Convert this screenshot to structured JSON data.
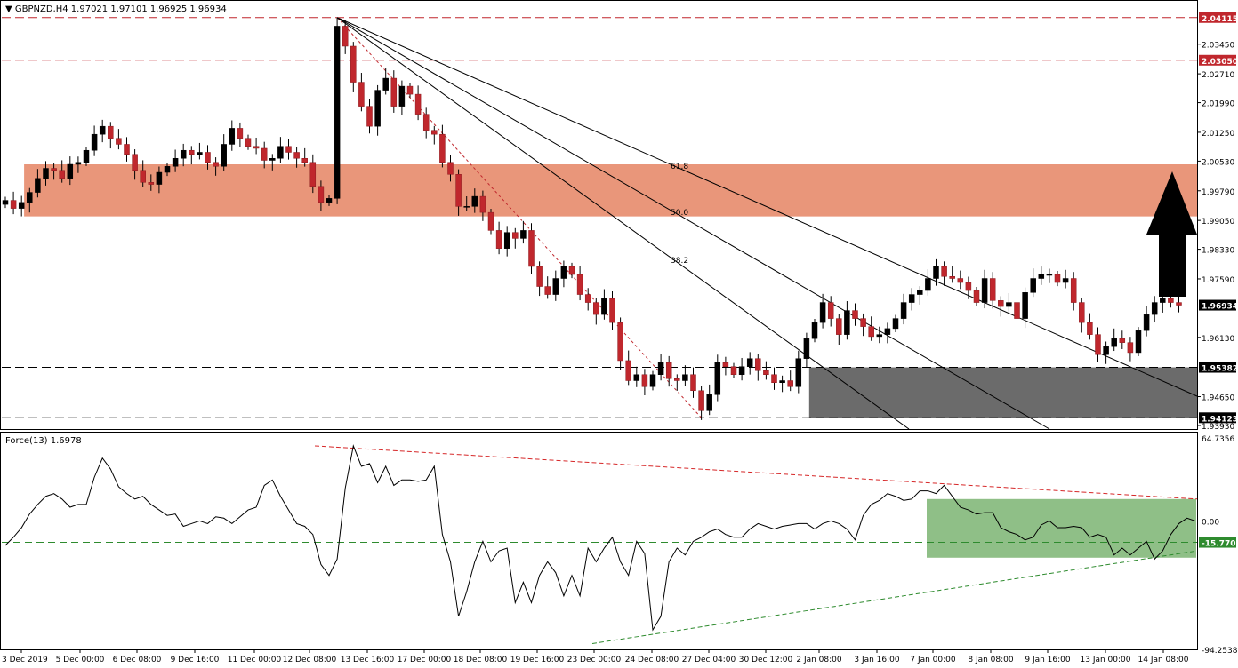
{
  "chart_data": [
    {
      "type": "candlestick",
      "title": "GBPNZD,H4",
      "ohlc_header": "1.97021 1.97101 1.96925 1.96934",
      "ylim": [
        1.9393,
        2.0442
      ],
      "price_ticks": [
        "2.03450",
        "2.02710",
        "2.01990",
        "2.01250",
        "2.00530",
        "1.99790",
        "1.99050",
        "1.98330",
        "1.97590",
        "1.96130",
        "1.94650",
        "1.93930"
      ],
      "level_labels": [
        {
          "value": 2.04115,
          "text": "2.04115",
          "color": "#c0272d"
        },
        {
          "value": 2.0305,
          "text": "2.03050",
          "color": "#c0272d"
        },
        {
          "value": 1.96934,
          "text": "1.96934",
          "color": "#000000"
        },
        {
          "value": 1.95382,
          "text": "1.95382",
          "color": "#000000"
        },
        {
          "value": 1.94123,
          "text": "1.94123",
          "color": "#000000"
        }
      ],
      "horizontal_levels": [
        {
          "value": 2.04115,
          "color": "#c0272d",
          "style": "dashed"
        },
        {
          "value": 2.0305,
          "color": "#c0272d",
          "style": "dashed"
        },
        {
          "value": 1.95382,
          "color": "#000000",
          "style": "dashed"
        },
        {
          "value": 1.94123,
          "color": "#000000",
          "style": "dashed"
        }
      ],
      "zones": [
        {
          "name": "resistance",
          "from_bar": 1,
          "to_bar": "end",
          "low": 1.9915,
          "high": 2.0045,
          "color": "#e9967a"
        },
        {
          "name": "support",
          "from_bar": 98,
          "to_bar": "end",
          "low": 1.94123,
          "high": 1.95382,
          "color": "#6b6b6b"
        }
      ],
      "fib_fan_labels": [
        "61.8",
        "50.0",
        "38.2"
      ],
      "x_tick_labels": [
        "3 Dec 2019",
        "5 Dec 00:00",
        "6 Dec 08:00",
        "9 Dec 16:00",
        "11 Dec 00:00",
        "12 Dec 08:00",
        "13 Dec 16:00",
        "17 Dec 00:00",
        "18 Dec 08:00",
        "19 Dec 16:00",
        "23 Dec 00:00",
        "24 Dec 08:00",
        "27 Dec 04:00",
        "30 Dec 12:00",
        "2 Jan 08:00",
        "3 Jan 16:00",
        "7 Jan 00:00",
        "8 Jan 08:00",
        "9 Jan 16:00",
        "13 Jan 00:00",
        "14 Jan 08:00"
      ],
      "closes": [
        1.9955,
        1.9935,
        1.995,
        1.9975,
        2.001,
        2.0035,
        2.003,
        2.001,
        2.0045,
        2.005,
        2.008,
        2.012,
        2.014,
        2.011,
        2.0095,
        2.007,
        2.003,
        2.0,
        1.9995,
        2.0025,
        2.004,
        2.006,
        2.008,
        2.007,
        2.0075,
        2.005,
        2.004,
        2.0095,
        2.0135,
        2.011,
        2.009,
        2.0085,
        2.0055,
        2.006,
        2.009,
        2.0075,
        2.006,
        2.005,
        1.999,
        1.995,
        1.996,
        2.039,
        2.034,
        2.025,
        2.019,
        2.014,
        2.023,
        2.026,
        2.019,
        2.024,
        2.022,
        2.017,
        2.013,
        2.012,
        2.005,
        2.002,
        1.994,
        1.994,
        1.9965,
        1.9925,
        1.988,
        1.9835,
        1.9875,
        1.986,
        1.988,
        1.979,
        1.974,
        1.972,
        1.976,
        1.979,
        1.977,
        1.972,
        1.97,
        1.967,
        1.971,
        1.965,
        1.9555,
        1.9505,
        1.952,
        1.949,
        1.952,
        1.955,
        1.951,
        1.9505,
        1.952,
        1.948,
        1.943,
        1.947,
        1.955,
        1.954,
        1.952,
        1.954,
        1.956,
        1.953,
        1.952,
        1.95,
        1.9505,
        1.949,
        1.956,
        1.961,
        1.965,
        1.97,
        1.966,
        1.962,
        1.968,
        1.966,
        1.964,
        1.9615,
        1.962,
        1.9635,
        1.966,
        1.97,
        1.972,
        1.973,
        1.976,
        1.979,
        1.9765,
        1.976,
        1.975,
        1.973,
        1.97,
        1.976,
        1.9705,
        1.969,
        1.97,
        1.966,
        1.9725,
        1.976,
        1.977,
        1.977,
        1.975,
        1.976,
        1.97,
        1.965,
        1.962,
        1.957,
        1.959,
        1.961,
        1.96,
        1.9575,
        1.963,
        1.967,
        1.97,
        1.971,
        1.97,
        1.96934
      ],
      "force_indicator": {
        "title": "Force(13) 1.6978",
        "ylim": [
          -94.2538,
          64.7356
        ],
        "ticks": [
          "64.7356",
          "0.00",
          "-94.2538"
        ],
        "level_label": "-15.7702",
        "level": -15.7702,
        "zone": {
          "low": -27.0,
          "high": 16.0,
          "color": "#8fbf87"
        },
        "values": [
          -18,
          -12,
          -5,
          5,
          12,
          18,
          20,
          16,
          10,
          12,
          12,
          32,
          46,
          38,
          25,
          20,
          16,
          18,
          12,
          8,
          4,
          5,
          -4,
          -2,
          0,
          -2,
          3,
          2,
          -2,
          3,
          8,
          10,
          26,
          30,
          18,
          8,
          -2,
          -4,
          -10,
          -32,
          -40,
          -28,
          24,
          55,
          40,
          42,
          28,
          40,
          26,
          30,
          30,
          29,
          30,
          40,
          -10,
          -30,
          -70,
          -52,
          -30,
          -15,
          -30,
          -22,
          -20,
          -60,
          -45,
          -60,
          -40,
          -30,
          -38,
          -55,
          -40,
          -55,
          -20,
          -30,
          -20,
          -12,
          -30,
          -40,
          -15,
          -24,
          -80,
          -70,
          -30,
          -20,
          -25,
          -15,
          -12,
          -8,
          -6,
          -10,
          -12,
          -12,
          -6,
          -2,
          -4,
          -6,
          -4,
          -3,
          -2,
          -2,
          -6,
          -2,
          0,
          -2,
          -6,
          -14,
          4,
          12,
          15,
          20,
          18,
          15,
          16,
          22,
          22,
          20,
          26,
          18,
          10,
          8,
          5,
          6,
          6,
          -5,
          -8,
          -10,
          -14,
          -12,
          -3,
          0,
          -5,
          -5,
          -4,
          -5,
          -12,
          -10,
          -12,
          -25,
          -20,
          -25,
          -20,
          -15,
          -28,
          -22,
          -10,
          -2,
          2,
          0
        ]
      }
    }
  ]
}
